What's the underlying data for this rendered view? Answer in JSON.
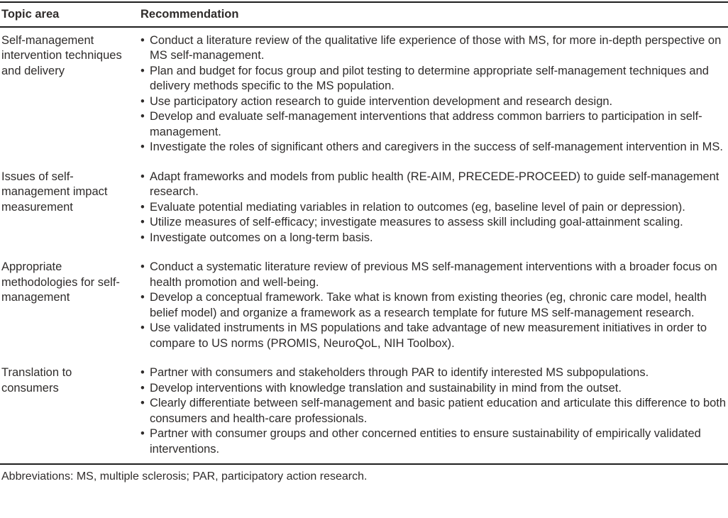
{
  "colors": {
    "background": "#ffffff",
    "text": "#2f2c2b",
    "rule": "#1f1f1f"
  },
  "icons": {
    "bullet": "•"
  },
  "table": {
    "header": {
      "topic": "Topic area",
      "recommendation": "Recommendation"
    },
    "rows": [
      {
        "topic": "Self-management intervention techniques and delivery",
        "recommendations": [
          "Conduct a literature review of the qualitative life experience of those with MS, for more in-depth perspective on MS self-management.",
          "Plan and budget for focus group and pilot testing to determine appropriate self-management techniques and delivery methods specific to the MS population.",
          "Use participatory action research to guide intervention development and research design.",
          "Develop and evaluate self-management interventions that address common barriers to participation in self-management.",
          "Investigate the roles of significant others and caregivers in the success of self-management intervention in MS."
        ]
      },
      {
        "topic": "Issues of self-management impact measurement",
        "recommendations": [
          "Adapt frameworks and models from public health (RE-AIM, PRECEDE-PROCEED) to guide self-management research.",
          "Evaluate potential mediating variables in relation to outcomes (eg, baseline level of pain or depression).",
          "Utilize measures of self-efficacy; investigate measures to assess skill including goal-attainment scaling.",
          "Investigate outcomes on a long-term basis."
        ]
      },
      {
        "topic": "Appropriate methodologies for self-management",
        "recommendations": [
          "Conduct a systematic literature review of previous MS self-management interventions with a broader focus on health promotion and well-being.",
          "Develop a conceptual framework. Take what is known from existing theories (eg, chronic care model, health belief model) and organize a framework as a research template for future MS self-management research.",
          "Use validated instruments in MS populations and take advantage of new measurement initiatives in order to compare to US norms (PROMIS, NeuroQoL, NIH Toolbox)."
        ]
      },
      {
        "topic": "Translation to consumers",
        "recommendations": [
          "Partner with consumers and stakeholders through PAR to identify interested MS subpopulations.",
          "Develop interventions with knowledge translation and sustainability in mind from the outset.",
          "Clearly differentiate between self-management and basic patient education and articulate this difference to both consumers and health-care professionals.",
          "Partner with consumer groups and other concerned entities to ensure sustainability of empirically validated interventions."
        ]
      }
    ],
    "footnote": "Abbreviations: MS, multiple sclerosis; PAR, participatory action research."
  }
}
